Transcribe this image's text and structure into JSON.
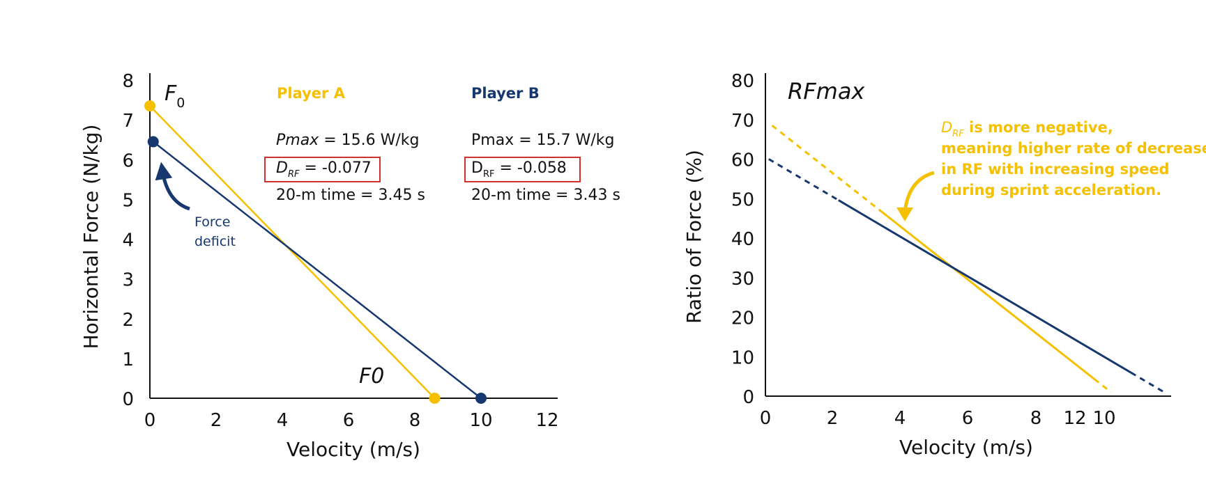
{
  "colors": {
    "player_a": "#F5C000",
    "player_b": "#17386E",
    "box_border": "#D0312D",
    "axis": "#111111",
    "force_deficit": "#17386E"
  },
  "chart_data": [
    {
      "type": "line",
      "xlabel": "Velocity (m/s)",
      "ylabel": "Horizontal Force (N/kg)",
      "xlim": [
        0,
        12
      ],
      "ylim": [
        0,
        8
      ],
      "x_ticks": [
        "0",
        "2",
        "4",
        "6",
        "8",
        "10",
        "12"
      ],
      "y_ticks": [
        "0",
        "1",
        "2",
        "3",
        "4",
        "5",
        "6",
        "7",
        "8"
      ],
      "grid": false,
      "series": [
        {
          "name": "Player A",
          "color": "#F5C000",
          "x": [
            0,
            8.6
          ],
          "y": [
            7.35,
            0
          ]
        },
        {
          "name": "Player B",
          "color": "#17386E",
          "x": [
            0.1,
            10
          ],
          "y": [
            6.45,
            0
          ]
        }
      ],
      "annotations": {
        "f0_label": "F",
        "f0_subscript": "0",
        "v0_label": "F0",
        "force_deficit_line1": "Force",
        "force_deficit_line2": "deficit"
      },
      "players": [
        {
          "name": "Player A",
          "pmax_label": "Pmax",
          "pmax_value": " = 15.6 W/kg",
          "drf_label": "D",
          "drf_sub": "RF",
          "drf_value": " = -0.077",
          "time": "20-m time = 3.45 s"
        },
        {
          "name": "Player B",
          "pmax_label": "Pmax",
          "pmax_value": " = 15.7 W/kg",
          "drf_label": "D",
          "drf_sub": "RF",
          "drf_value": " = -0.058",
          "time": "20-m time = 3.43 s"
        }
      ]
    },
    {
      "type": "line",
      "xlabel": "Velocity (m/s)",
      "ylabel": "Ratio of Force (%)",
      "xlim": [
        0,
        12
      ],
      "ylim": [
        0,
        80
      ],
      "x_ticks": [
        "0",
        "2",
        "4",
        "6",
        "8",
        "12",
        "10"
      ],
      "y_ticks": [
        "0",
        "10",
        "20",
        "30",
        "40",
        "50",
        "60",
        "70",
        "80"
      ],
      "grid": false,
      "series": [
        {
          "name": "Player A",
          "color": "#F5C000",
          "x": [
            0.2,
            10.4
          ],
          "y": [
            68.5,
            1
          ],
          "solid_from": 3.5,
          "solid_to": 9.9
        },
        {
          "name": "Player B",
          "color": "#17386E",
          "x": [
            0.1,
            12
          ],
          "y": [
            60,
            1
          ],
          "solid_from": 2.2,
          "solid_to": 11
        }
      ],
      "annotations": {
        "title": "RFmax",
        "note_prefix": "D",
        "note_sub": "RF",
        "note_line1": " is more negative,",
        "note_line2": "meaning higher rate of decrease",
        "note_line3": "in RF with increasing speed",
        "note_line4": "during sprint acceleration."
      }
    }
  ]
}
